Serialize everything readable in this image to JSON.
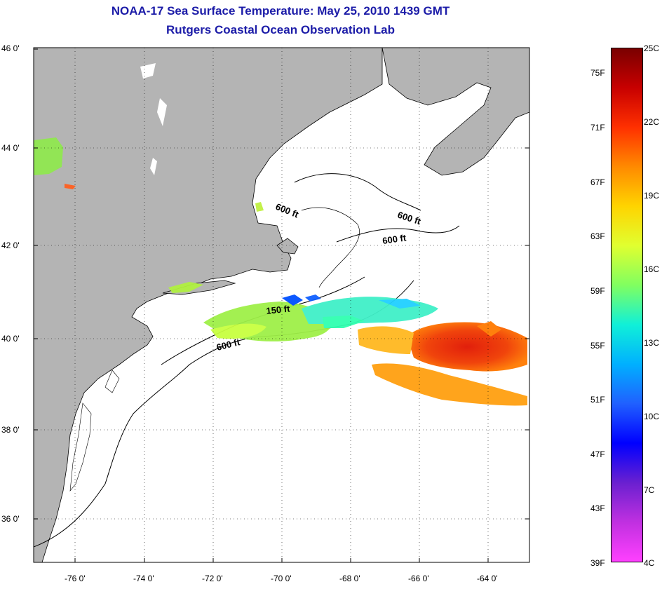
{
  "title": {
    "line1": "NOAA-17 Sea Surface Temperature:  May 25, 2010 1439 GMT",
    "line2": "Rutgers Coastal Ocean Observation Lab"
  },
  "map": {
    "lat_labels": [
      "46 0'",
      "44 0'",
      "42 0'",
      "40 0'",
      "38 0'",
      "36 0'"
    ],
    "lon_labels": [
      "-76 0'",
      "-74 0'",
      "-72 0'",
      "-70 0'",
      "-68 0'",
      "-66 0'",
      "-64 0'"
    ],
    "contour_labels": [
      "600 ft",
      "600 ft",
      "600 ft",
      "150 ft",
      "600 ft"
    ],
    "colors": {
      "land": "#b4b4b4",
      "ocean": "#ffffff",
      "coast": "#000000"
    }
  },
  "colorbar": {
    "fahrenheit": [
      "75F",
      "71F",
      "67F",
      "63F",
      "59F",
      "55F",
      "51F",
      "47F",
      "43F",
      "39F"
    ],
    "celsius": [
      "25C",
      "22C",
      "19C",
      "16C",
      "13C",
      "10C",
      "7C",
      "4C"
    ],
    "gradient": [
      "#7a0000",
      "#c80000",
      "#ff3000",
      "#ff8a00",
      "#ffd400",
      "#e0ff30",
      "#80ff60",
      "#10f0d8",
      "#00b0ff",
      "#2060ff",
      "#0000ff",
      "#6a20d0",
      "#c030e0",
      "#ff40ff"
    ]
  }
}
